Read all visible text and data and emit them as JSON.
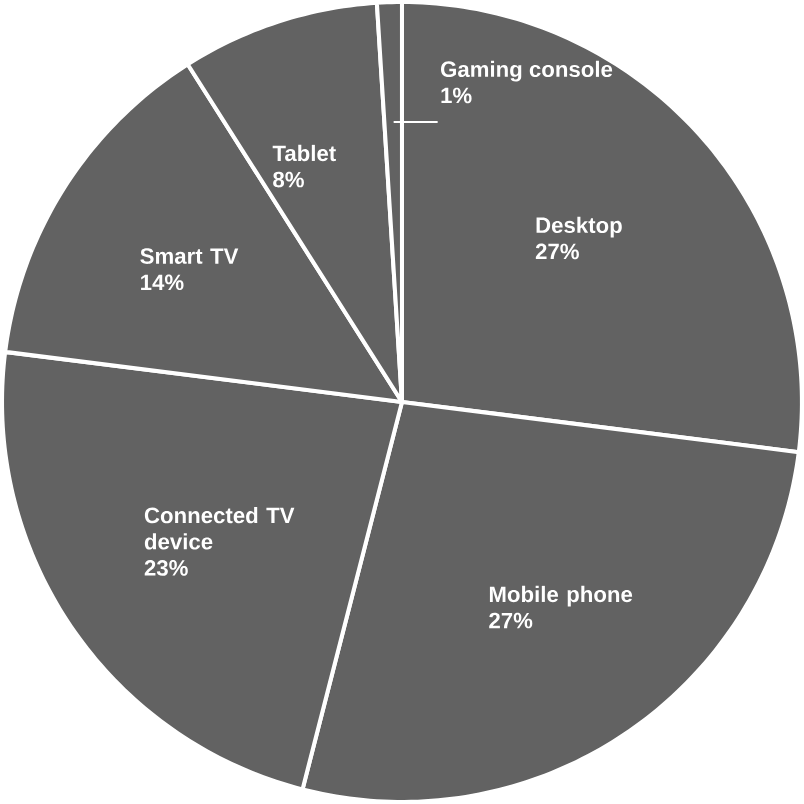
{
  "chart_data": {
    "type": "pie",
    "categories": [
      "Desktop",
      "Mobile phone",
      "Connected TV device",
      "Smart TV",
      "Tablet",
      "Gaming console"
    ],
    "values": [
      27,
      27,
      23,
      14,
      8,
      1
    ],
    "value_labels": [
      "27%",
      "27%",
      "23%",
      "14%",
      "8%",
      "1%"
    ],
    "colors": [
      "#626262",
      "#626262",
      "#626262",
      "#626262",
      "#626262",
      "#626262"
    ]
  }
}
